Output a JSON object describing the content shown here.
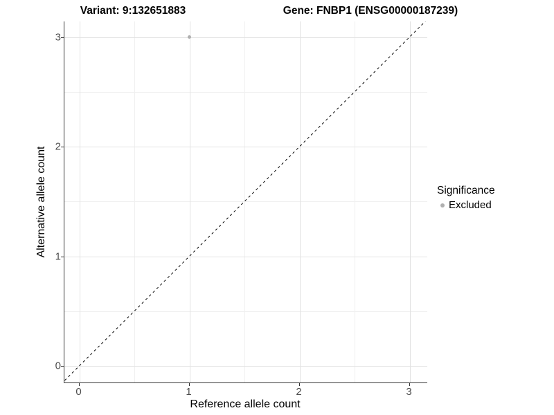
{
  "header": {
    "variant_label": "Variant: 9:132651883",
    "gene_label": "Gene: FNBP1 (ENSG00000187239)"
  },
  "chart_data": {
    "type": "scatter",
    "title": "Variant: 9:132651883    Gene: FNBP1 (ENSG00000187239)",
    "xlabel": "Reference allele count",
    "ylabel": "Alternative allele count",
    "x_ticks": [
      0,
      1,
      2,
      3
    ],
    "y_ticks": [
      0,
      1,
      2,
      3
    ],
    "xlim": [
      -0.15,
      3.15
    ],
    "ylim": [
      -0.15,
      3.15
    ],
    "grid": {
      "major": true,
      "minor": true,
      "minor_step": 0.5
    },
    "points": [
      {
        "x": 1,
        "y": 3,
        "significance": "Excluded"
      }
    ],
    "point_color": "#b0b0b0",
    "identity_line": {
      "slope": 1,
      "intercept": 0,
      "style": "dashed",
      "color": "#000000"
    },
    "legend": {
      "title": "Significance",
      "position": "right",
      "entries": [
        {
          "label": "Excluded",
          "color": "#b0b0b0"
        }
      ]
    }
  }
}
